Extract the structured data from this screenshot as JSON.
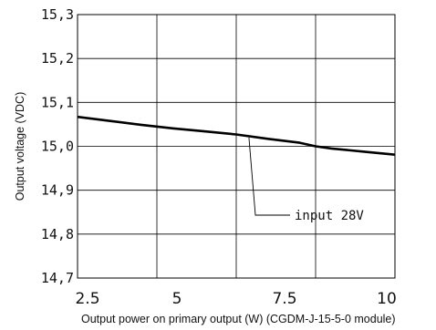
{
  "chart_data": {
    "type": "line",
    "title": "",
    "xlabel": "Output power on primary output (W)  (CGDM-J-15-5-0 module)",
    "ylabel": "Output voltage (VDC)",
    "xlim": [
      0,
      10
    ],
    "ylim": [
      14.7,
      15.3
    ],
    "x_ticks": [
      {
        "value": 2.5,
        "label": "2.5"
      },
      {
        "value": 5,
        "label": "5"
      },
      {
        "value": 7.5,
        "label": "7.5"
      },
      {
        "value": 10,
        "label": "10"
      }
    ],
    "y_ticks": [
      {
        "value": 14.7,
        "label": "14,7"
      },
      {
        "value": 14.8,
        "label": "14,8"
      },
      {
        "value": 14.9,
        "label": "14,9"
      },
      {
        "value": 15.0,
        "label": "15,0"
      },
      {
        "value": 15.1,
        "label": "15,1"
      },
      {
        "value": 15.2,
        "label": "15,2"
      },
      {
        "value": 15.3,
        "label": "15,3"
      }
    ],
    "grid": true,
    "series": [
      {
        "name": "input 28V",
        "color": "#000000",
        "x": [
          0,
          1,
          2,
          3,
          4,
          5,
          6,
          7,
          7.5,
          8,
          9,
          10
        ],
        "y": [
          15.067,
          15.058,
          15.049,
          15.041,
          15.034,
          15.027,
          15.017,
          15.008,
          15.0,
          14.995,
          14.988,
          14.981
        ]
      }
    ],
    "annotations": [
      {
        "text": "input 28V",
        "points_to_x": 5.4,
        "points_to_y": 15.02
      }
    ]
  }
}
